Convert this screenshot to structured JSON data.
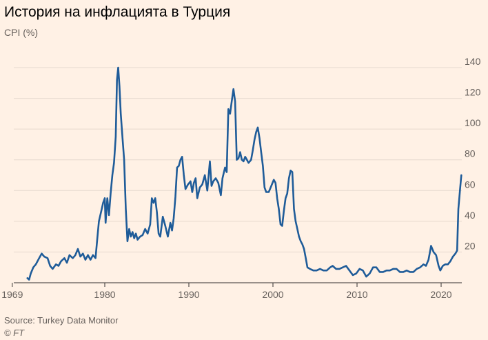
{
  "title": "История на инфлацията в Турция",
  "subtitle": "CPI (%)",
  "source": "Source: Turkey Data Monitor",
  "credit": "© FT",
  "colors": {
    "background": "#fff1e5",
    "line": "#1f5c99",
    "grid": "#e6d9ce",
    "axis": "#33302e"
  },
  "chart_data": {
    "type": "line",
    "title": "История на инфлацията в Турция",
    "ylabel": "CPI (%)",
    "xlabel": "",
    "xlim": [
      1969,
      2023
    ],
    "ylim": [
      0,
      140
    ],
    "x_ticks": [
      1969,
      1980,
      1990,
      2000,
      2010,
      2020
    ],
    "y_ticks": [
      20,
      40,
      60,
      80,
      100,
      120,
      140
    ],
    "grid": true,
    "y_axis_side": "right",
    "series": [
      {
        "values": [
          [
            1970.8,
            3
          ],
          [
            1971.0,
            2
          ],
          [
            1971.2,
            6
          ],
          [
            1971.5,
            10
          ],
          [
            1971.8,
            12
          ],
          [
            1972.2,
            16
          ],
          [
            1972.5,
            19
          ],
          [
            1972.8,
            17
          ],
          [
            1973.2,
            16
          ],
          [
            1973.5,
            11
          ],
          [
            1973.8,
            9
          ],
          [
            1974.2,
            12
          ],
          [
            1974.5,
            11
          ],
          [
            1974.8,
            14
          ],
          [
            1975.2,
            16
          ],
          [
            1975.5,
            13
          ],
          [
            1975.8,
            18
          ],
          [
            1976.2,
            16
          ],
          [
            1976.5,
            18
          ],
          [
            1976.8,
            22
          ],
          [
            1977.1,
            17
          ],
          [
            1977.4,
            19
          ],
          [
            1977.7,
            15
          ],
          [
            1978.0,
            18
          ],
          [
            1978.3,
            15
          ],
          [
            1978.6,
            18
          ],
          [
            1978.9,
            16
          ],
          [
            1979.1,
            28
          ],
          [
            1979.3,
            40
          ],
          [
            1979.6,
            47
          ],
          [
            1979.8,
            52
          ],
          [
            1980.0,
            55
          ],
          [
            1980.1,
            39
          ],
          [
            1980.3,
            55
          ],
          [
            1980.5,
            44
          ],
          [
            1980.7,
            58
          ],
          [
            1980.9,
            70
          ],
          [
            1981.1,
            78
          ],
          [
            1981.3,
            95
          ],
          [
            1981.45,
            132
          ],
          [
            1981.6,
            140
          ],
          [
            1981.75,
            128
          ],
          [
            1981.9,
            110
          ],
          [
            1982.1,
            95
          ],
          [
            1982.3,
            80
          ],
          [
            1982.5,
            48
          ],
          [
            1982.7,
            27
          ],
          [
            1982.9,
            35
          ],
          [
            1983.1,
            30
          ],
          [
            1983.3,
            33
          ],
          [
            1983.5,
            29
          ],
          [
            1983.7,
            32
          ],
          [
            1983.9,
            28
          ],
          [
            1984.2,
            30
          ],
          [
            1984.5,
            31
          ],
          [
            1984.8,
            35
          ],
          [
            1985.1,
            32
          ],
          [
            1985.4,
            38
          ],
          [
            1985.6,
            55
          ],
          [
            1985.8,
            52
          ],
          [
            1986.0,
            55
          ],
          [
            1986.2,
            46
          ],
          [
            1986.4,
            32
          ],
          [
            1986.6,
            30
          ],
          [
            1986.9,
            43
          ],
          [
            1987.2,
            37
          ],
          [
            1987.5,
            30
          ],
          [
            1987.8,
            39
          ],
          [
            1988.0,
            34
          ],
          [
            1988.2,
            42
          ],
          [
            1988.4,
            56
          ],
          [
            1988.6,
            75
          ],
          [
            1988.8,
            76
          ],
          [
            1989.0,
            80
          ],
          [
            1989.2,
            82
          ],
          [
            1989.4,
            70
          ],
          [
            1989.6,
            61
          ],
          [
            1989.9,
            64
          ],
          [
            1990.2,
            66
          ],
          [
            1990.4,
            59
          ],
          [
            1990.6,
            65
          ],
          [
            1990.8,
            68
          ],
          [
            1991.0,
            55
          ],
          [
            1991.3,
            62
          ],
          [
            1991.6,
            64
          ],
          [
            1991.9,
            70
          ],
          [
            1992.2,
            60
          ],
          [
            1992.5,
            79
          ],
          [
            1992.7,
            63
          ],
          [
            1992.9,
            66
          ],
          [
            1993.2,
            68
          ],
          [
            1993.5,
            65
          ],
          [
            1993.8,
            57
          ],
          [
            1994.0,
            68
          ],
          [
            1994.3,
            75
          ],
          [
            1994.5,
            72
          ],
          [
            1994.7,
            113
          ],
          [
            1994.9,
            110
          ],
          [
            1995.1,
            118
          ],
          [
            1995.3,
            126
          ],
          [
            1995.5,
            118
          ],
          [
            1995.7,
            80
          ],
          [
            1995.9,
            81
          ],
          [
            1996.1,
            85
          ],
          [
            1996.3,
            80
          ],
          [
            1996.5,
            79
          ],
          [
            1996.7,
            82
          ],
          [
            1996.9,
            80
          ],
          [
            1997.1,
            78
          ],
          [
            1997.4,
            80
          ],
          [
            1997.6,
            86
          ],
          [
            1997.8,
            93
          ],
          [
            1998.0,
            98
          ],
          [
            1998.2,
            101
          ],
          [
            1998.4,
            94
          ],
          [
            1998.6,
            85
          ],
          [
            1998.8,
            76
          ],
          [
            1999.0,
            62
          ],
          [
            1999.2,
            59
          ],
          [
            1999.5,
            59
          ],
          [
            1999.8,
            63
          ],
          [
            2000.1,
            67
          ],
          [
            2000.3,
            65
          ],
          [
            2000.5,
            55
          ],
          [
            2000.7,
            48
          ],
          [
            2000.9,
            38
          ],
          [
            2001.1,
            37
          ],
          [
            2001.3,
            47
          ],
          [
            2001.5,
            55
          ],
          [
            2001.7,
            58
          ],
          [
            2001.9,
            68
          ],
          [
            2002.1,
            73
          ],
          [
            2002.3,
            72
          ],
          [
            2002.5,
            48
          ],
          [
            2002.7,
            40
          ],
          [
            2002.9,
            35
          ],
          [
            2003.1,
            30
          ],
          [
            2003.3,
            27
          ],
          [
            2003.5,
            25
          ],
          [
            2003.7,
            22
          ],
          [
            2003.9,
            16
          ],
          [
            2004.1,
            10
          ],
          [
            2004.4,
            9
          ],
          [
            2004.8,
            8
          ],
          [
            2005.2,
            8
          ],
          [
            2005.6,
            9
          ],
          [
            2006.0,
            8
          ],
          [
            2006.4,
            8
          ],
          [
            2006.8,
            10
          ],
          [
            2007.1,
            11
          ],
          [
            2007.5,
            9
          ],
          [
            2007.9,
            9
          ],
          [
            2008.3,
            10
          ],
          [
            2008.7,
            11
          ],
          [
            2009.1,
            8
          ],
          [
            2009.5,
            5
          ],
          [
            2009.9,
            6
          ],
          [
            2010.3,
            9
          ],
          [
            2010.7,
            8
          ],
          [
            2011.1,
            4
          ],
          [
            2011.5,
            6
          ],
          [
            2011.9,
            10
          ],
          [
            2012.3,
            10
          ],
          [
            2012.7,
            7
          ],
          [
            2013.1,
            7
          ],
          [
            2013.5,
            8
          ],
          [
            2013.9,
            8
          ],
          [
            2014.3,
            9
          ],
          [
            2014.7,
            9
          ],
          [
            2015.1,
            7
          ],
          [
            2015.5,
            7
          ],
          [
            2015.9,
            8
          ],
          [
            2016.3,
            7
          ],
          [
            2016.7,
            7
          ],
          [
            2017.1,
            9
          ],
          [
            2017.5,
            10
          ],
          [
            2017.9,
            12
          ],
          [
            2018.2,
            11
          ],
          [
            2018.5,
            15
          ],
          [
            2018.8,
            24
          ],
          [
            2019.1,
            20
          ],
          [
            2019.4,
            18
          ],
          [
            2019.7,
            11
          ],
          [
            2019.9,
            8
          ],
          [
            2020.2,
            11
          ],
          [
            2020.5,
            12
          ],
          [
            2020.8,
            12
          ],
          [
            2021.1,
            14
          ],
          [
            2021.4,
            17
          ],
          [
            2021.7,
            19
          ],
          [
            2021.9,
            21
          ],
          [
            2022.05,
            48
          ],
          [
            2022.25,
            61
          ],
          [
            2022.4,
            70
          ]
        ]
      }
    ]
  }
}
